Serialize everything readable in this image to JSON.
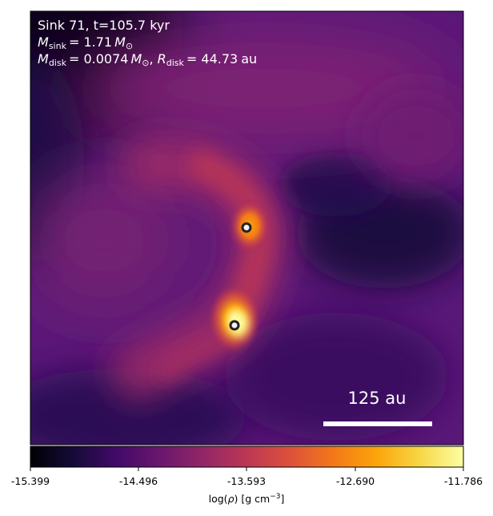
{
  "panel": {
    "title_line": "Sink 71, t=105.7 kyr",
    "sink_mass": {
      "symbol": "M",
      "subscript": "sink",
      "value": "= 1.71",
      "unit_symbol": "M",
      "unit_subscript": "⊙"
    },
    "disk_stats": {
      "mass_symbol": "M",
      "mass_subscript": "disk",
      "mass_value": "= 0.0074",
      "mass_unit": "M",
      "mass_unit_subscript": "⊙",
      "separator": ", ",
      "radius_symbol": "R",
      "radius_subscript": "disk",
      "radius_value": "= 44.73",
      "radius_unit": "au"
    },
    "scale_bar_label": "125 au",
    "colormap": "inferno",
    "sinks": [
      {
        "id": "sink-a",
        "edge_color": "#222222",
        "fill_color": "#f2f2f2"
      },
      {
        "id": "sink-b",
        "edge_color": "#222222",
        "fill_color": "#f2f2f2"
      }
    ]
  },
  "colorbar": {
    "ticks": [
      "-15.399",
      "-14.496",
      "-13.593",
      "-12.690",
      "-11.786"
    ],
    "label_prefix": "log(",
    "label_rho": "ρ",
    "label_mid": ") [g cm",
    "label_exp": "−3",
    "label_suffix": "]"
  }
}
